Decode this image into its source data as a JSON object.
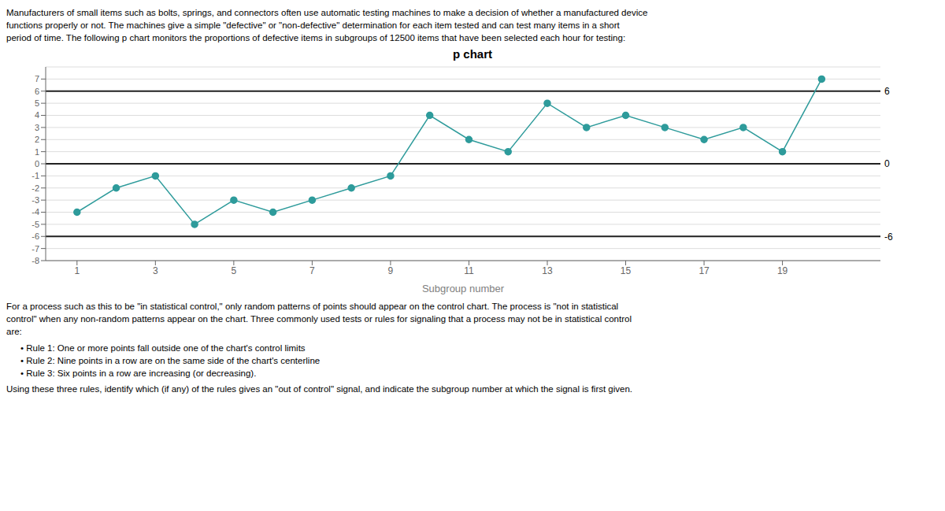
{
  "chart_data": {
    "type": "line",
    "title": "p chart",
    "subtitle": "Manufacturers of small items such as bolts, springs, and connectors often use automatic testing machines to make a decision of whether a manufactured device\nfunctions properly or not. The machines give a simple \"defective\" or \"non-defective\" determination for each item tested and can test many items in a short\nperiod of time. The following p chart monitors the proportions of defective items in subgroups of 12500 items that have been selected each hour for testing:",
    "notes": [
      "For a process such as this to be \"in statistical control,\" only random patterns of points should appear on the control chart. The process is \"not in statistical\ncontrol\" when any non-random patterns appear on the chart. Three commonly used tests or rules for signaling that a process may not be in statistical control\nare:",
      "• Rule 1: One or more points fall outside one of the chart's control limits\n• Rule 2: Nine points in a row are on the same side of the chart's centerline\n• Rule 3: Six points in a row are increasing (or decreasing).",
      "Using these three rules, identify which (if any) of the rules gives an \"out of control\" signal, and indicate the subgroup number at which the signal is first given."
    ],
    "xlabel": "Subgroup number",
    "x": [
      1,
      2,
      3,
      4,
      5,
      6,
      7,
      8,
      9,
      10,
      11,
      12,
      13,
      14,
      15,
      16,
      17,
      18,
      19,
      20
    ],
    "values": [
      -4,
      -2,
      -1,
      -5,
      -3,
      -4,
      -3,
      -2,
      -1,
      4,
      2,
      1,
      5,
      3,
      4,
      3,
      2,
      3,
      1,
      7
    ],
    "color": "#2E9B9B",
    "marker": "circle",
    "xlim": [
      0.2,
      21.5
    ],
    "xticks": [
      1,
      3,
      5,
      7,
      9,
      11,
      13,
      15,
      17,
      19
    ],
    "ylim": [
      -8,
      8
    ],
    "yticks": [
      -8,
      -7,
      -6,
      -5,
      -4,
      -3,
      -2,
      -1,
      0,
      1,
      2,
      3,
      4,
      5,
      6,
      7
    ],
    "grid": true,
    "annotations": [
      {
        "y": 6,
        "text": "6"
      },
      {
        "y": -6,
        "text": "-6"
      },
      {
        "y": 0,
        "text": "0"
      }
    ]
  }
}
